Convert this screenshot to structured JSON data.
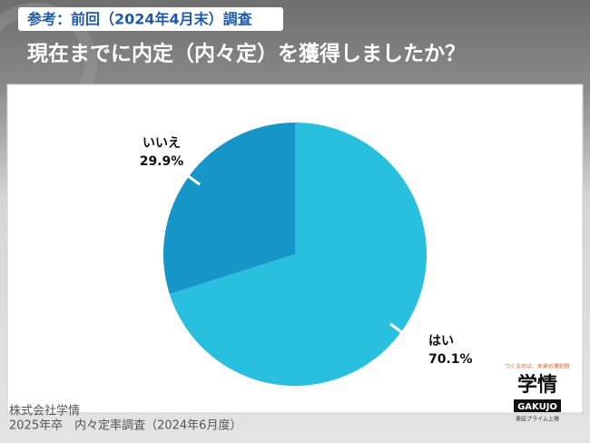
{
  "header": {
    "tag": "参考：前回（2024年4月末）調査",
    "title": "現在までに内定（内々定）を獲得しましたか？"
  },
  "chart_data": {
    "type": "pie",
    "categories": [
      "はい",
      "いいえ"
    ],
    "values": [
      70.1,
      29.9
    ],
    "value_labels": [
      "70.1%",
      "29.9%"
    ],
    "colors": [
      "#29c0e0",
      "#1695c9"
    ]
  },
  "footer": {
    "company": "株式会社学情",
    "survey": "2025年卒　内々定率調査（2024年6月度）"
  },
  "logo": {
    "tagline": "つくるのは、未来の選択肢",
    "name": "学情",
    "roman": "GAKUJO",
    "listing": "東証プライム上場"
  }
}
